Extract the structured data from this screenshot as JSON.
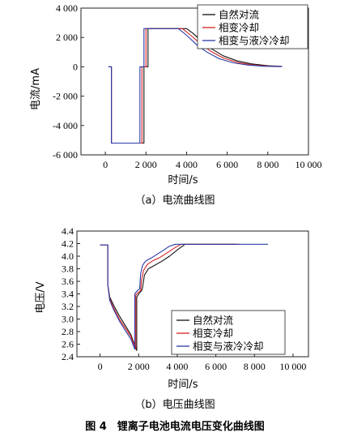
{
  "chart_data": [
    {
      "type": "line",
      "xlabel": "时间/s",
      "ylabel": "电流/mA",
      "caption": "（a）电流曲线图",
      "xlim": [
        -1200,
        10000
      ],
      "ylim": [
        -6000,
        4000
      ],
      "xticks": [
        0,
        2000,
        4000,
        6000,
        8000,
        10000
      ],
      "xtick_labels": [
        "0",
        "2 000",
        "4 000",
        "6 000",
        "8 000",
        "10 000"
      ],
      "yticks": [
        -6000,
        -4000,
        -2000,
        0,
        2000,
        4000
      ],
      "ytick_labels": [
        "-6 000",
        "-4 000",
        "-2 000",
        "0",
        "2 000",
        "4 000"
      ],
      "legend_position": "top-right",
      "series": [
        {
          "name": "自然对流",
          "color": "#111111",
          "x": [
            150,
            300,
            300,
            1900,
            1900,
            2100,
            2100,
            4000,
            4300,
            4700,
            5200,
            5800,
            6500,
            7200,
            8000,
            8700
          ],
          "y": [
            0,
            0,
            -5200,
            -5200,
            0,
            0,
            2600,
            2600,
            2300,
            1800,
            1250,
            750,
            400,
            200,
            70,
            30
          ]
        },
        {
          "name": "相变冷却",
          "color": "#d42020",
          "x": [
            150,
            300,
            300,
            1800,
            1800,
            2000,
            2000,
            3800,
            4200,
            4700,
            5200,
            5800,
            6500,
            7200,
            8000,
            8700
          ],
          "y": [
            0,
            0,
            -5200,
            -5200,
            0,
            0,
            2600,
            2600,
            2150,
            1550,
            1050,
            600,
            300,
            140,
            50,
            20
          ]
        },
        {
          "name": "相变与液冷冷却",
          "color": "#2a3aa8",
          "x": [
            150,
            300,
            300,
            1700,
            1700,
            1900,
            1900,
            3600,
            4000,
            4500,
            5000,
            5600,
            6300,
            7000,
            7800,
            8700
          ],
          "y": [
            0,
            0,
            -5200,
            -5200,
            0,
            0,
            2600,
            2600,
            2150,
            1500,
            1000,
            550,
            270,
            120,
            40,
            10
          ]
        }
      ]
    },
    {
      "type": "line",
      "xlabel": "时间/s",
      "ylabel": "电压/V",
      "caption": "（b）电压曲线图",
      "xlim": [
        -1200,
        10800
      ],
      "ylim": [
        2.4,
        4.4
      ],
      "xticks": [
        0,
        2000,
        4000,
        6000,
        8000,
        10000
      ],
      "xtick_labels": [
        "0",
        "2 000",
        "4 000",
        "6 000",
        "8 000",
        "10 000"
      ],
      "yticks": [
        2.4,
        2.6,
        2.8,
        3.0,
        3.2,
        3.4,
        3.6,
        3.8,
        4.0,
        4.2,
        4.4
      ],
      "ytick_labels": [
        "2.4",
        "2.6",
        "2.8",
        "3.0",
        "3.2",
        "3.4",
        "3.6",
        "3.8",
        "4.0",
        "4.2",
        "4.4"
      ],
      "legend_position": "bottom-right",
      "series": [
        {
          "name": "自然对流",
          "color": "#111111",
          "x": [
            0,
            400,
            400,
            500,
            700,
            1000,
            1300,
            1600,
            1900,
            1900,
            2050,
            2150,
            2200,
            2300,
            2400,
            2500,
            2800,
            3200,
            3600,
            4000,
            4400,
            7000
          ],
          "y": [
            4.18,
            4.18,
            3.55,
            3.35,
            3.22,
            3.05,
            2.9,
            2.75,
            2.5,
            3.35,
            3.42,
            3.45,
            3.5,
            3.7,
            3.75,
            3.8,
            3.85,
            3.92,
            4.0,
            4.1,
            4.19,
            4.19
          ]
        },
        {
          "name": "相变冷却",
          "color": "#d42020",
          "x": [
            0,
            400,
            400,
            500,
            700,
            1000,
            1300,
            1600,
            1850,
            1850,
            2000,
            2100,
            2150,
            2250,
            2350,
            2450,
            2750,
            3100,
            3500,
            3900,
            4200,
            7200
          ],
          "y": [
            4.18,
            4.18,
            3.55,
            3.32,
            3.18,
            3.0,
            2.86,
            2.72,
            2.52,
            3.38,
            3.43,
            3.45,
            3.62,
            3.77,
            3.82,
            3.87,
            3.93,
            3.98,
            4.06,
            4.14,
            4.19,
            4.19
          ]
        },
        {
          "name": "相变与液冷冷却",
          "color": "#2a3aa8",
          "x": [
            0,
            400,
            400,
            500,
            700,
            1000,
            1300,
            1600,
            1800,
            1800,
            1950,
            2050,
            2100,
            2200,
            2300,
            2400,
            2700,
            3000,
            3300,
            3600,
            3900,
            8700
          ],
          "y": [
            4.18,
            4.18,
            3.55,
            3.3,
            3.15,
            2.97,
            2.82,
            2.68,
            2.52,
            3.4,
            3.46,
            3.48,
            3.72,
            3.85,
            3.9,
            3.93,
            3.98,
            4.04,
            4.1,
            4.16,
            4.19,
            4.19
          ]
        }
      ]
    }
  ],
  "figure_caption": "图 4　锂离子电池电流电压变化曲线图"
}
